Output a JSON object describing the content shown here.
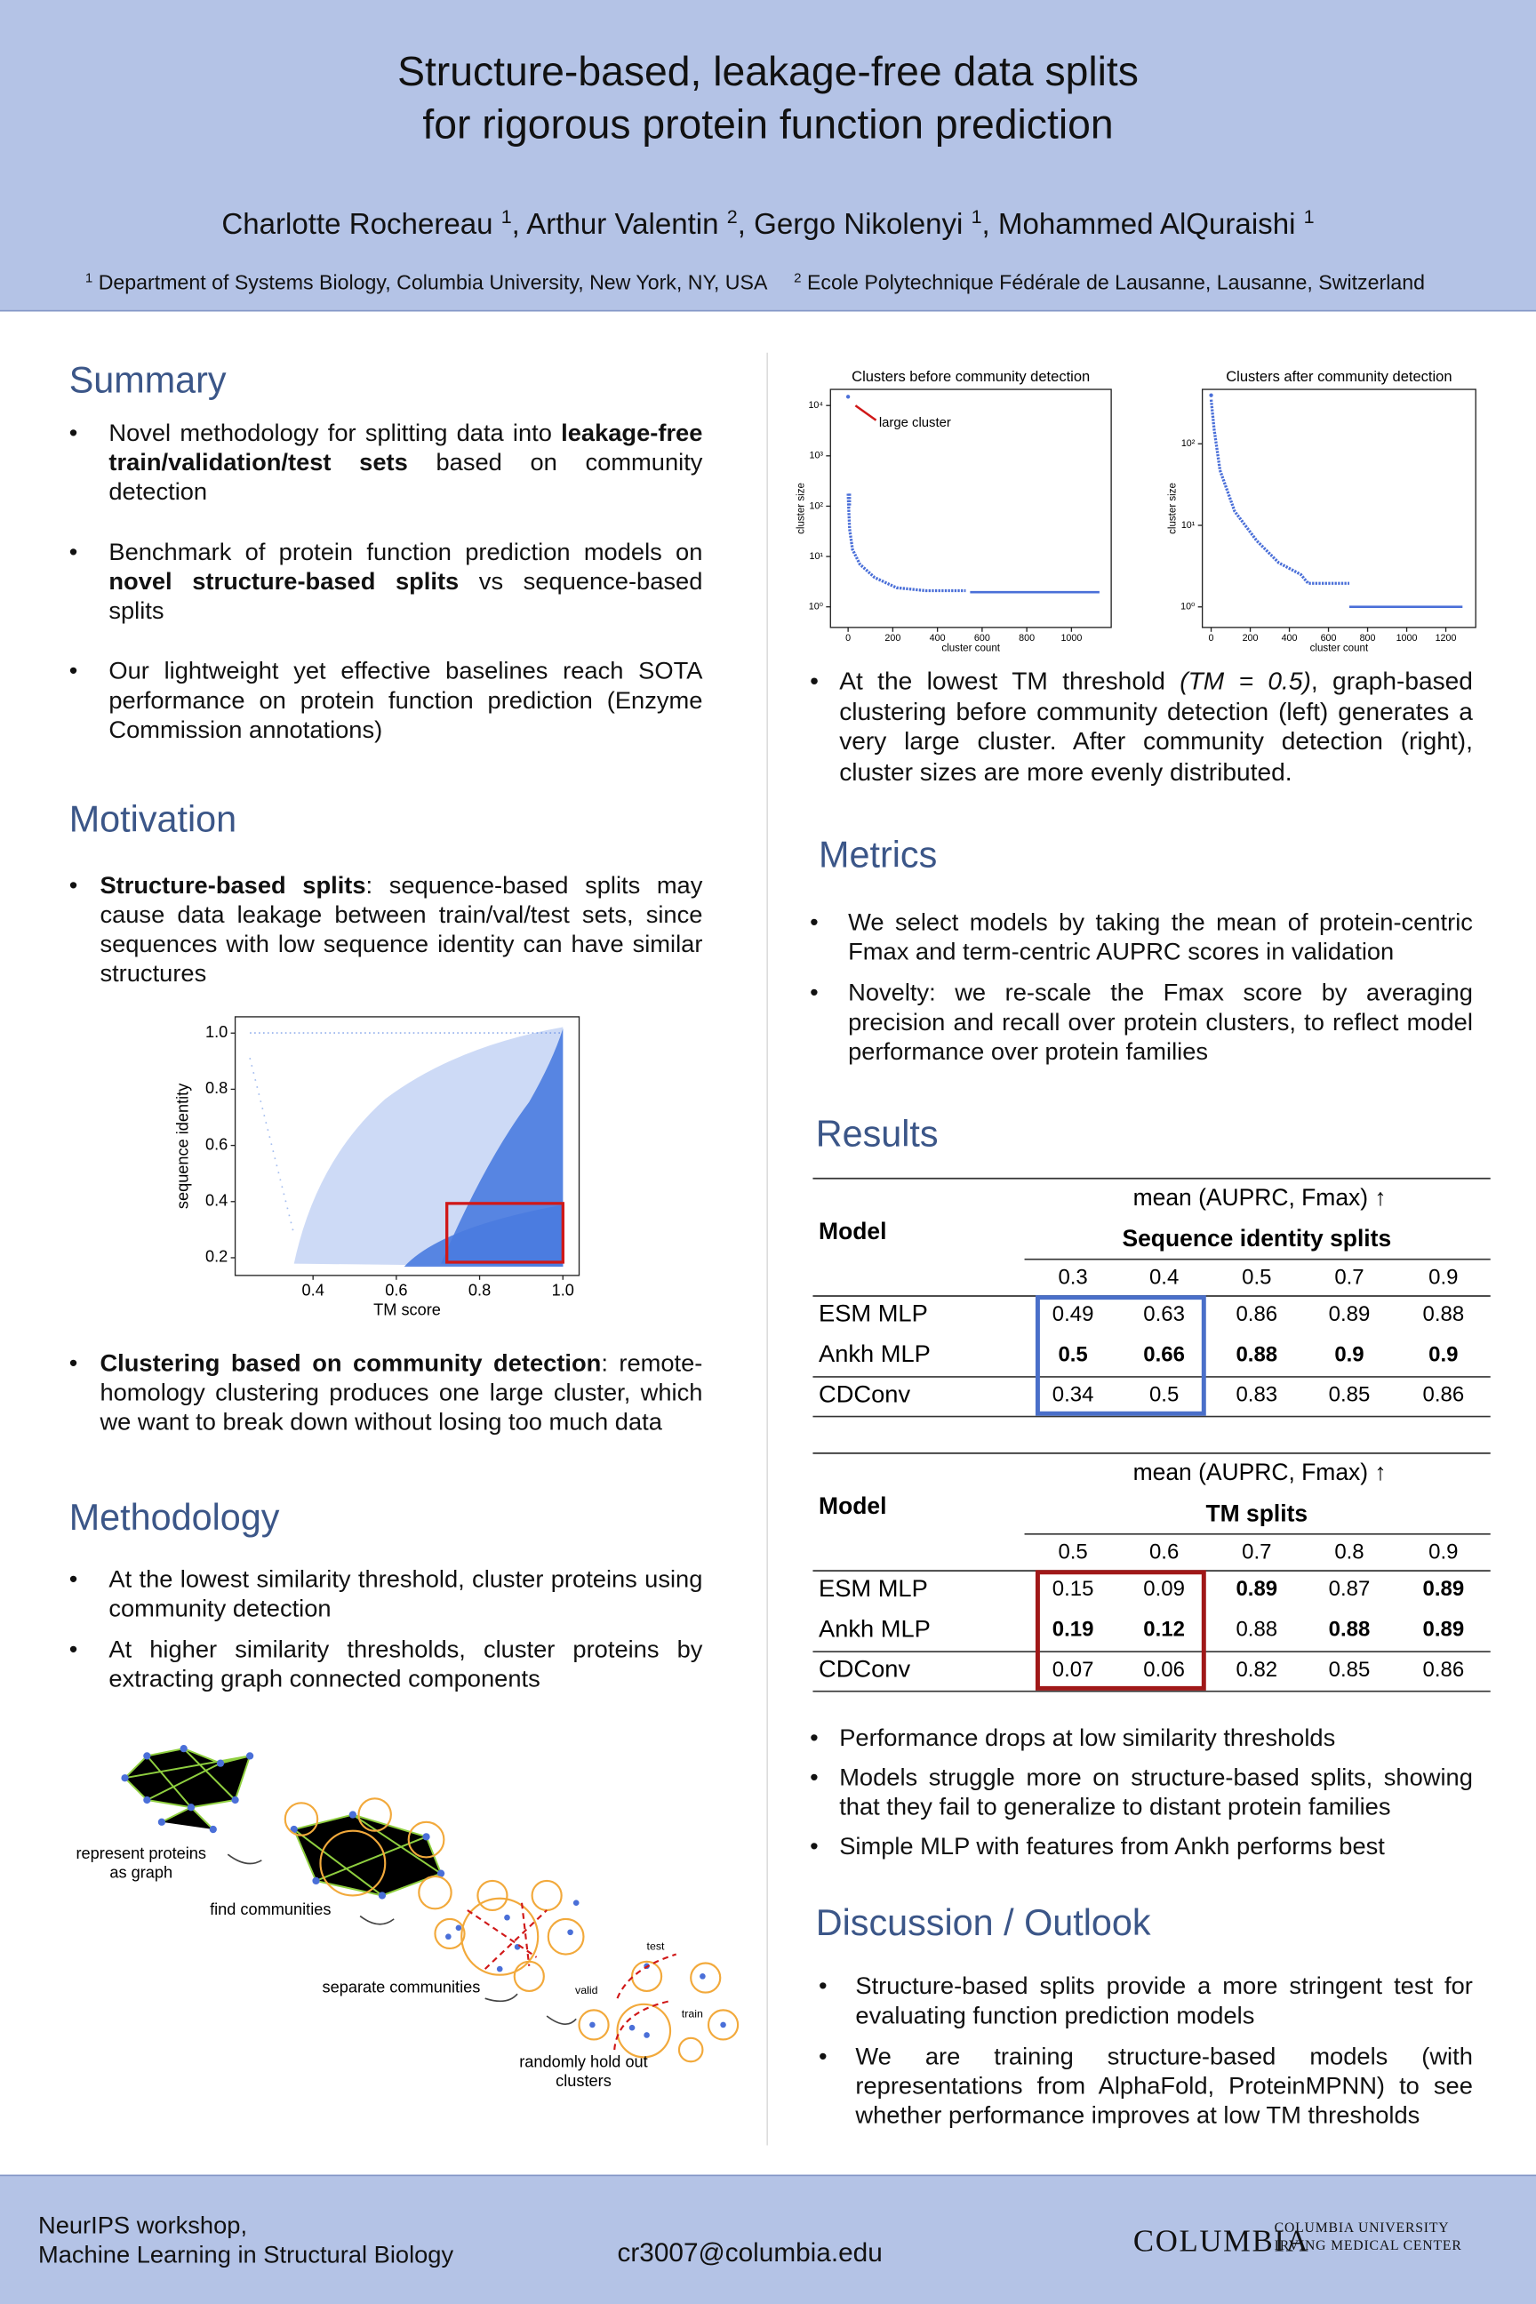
{
  "header": {
    "title": [
      "Structure-based, leakage-free data splits",
      "for rigorous protein function prediction"
    ],
    "authors": [
      {
        "text": "Charlotte Rochereau "
      },
      {
        "text": "1",
        "sup": true
      },
      {
        "text": ", Arthur Valentin "
      },
      {
        "text": "2",
        "sup": true
      },
      {
        "text": ", Gergo Nikolenyi "
      },
      {
        "text": "1",
        "sup": true
      },
      {
        "text": ", Mohammed AlQuraishi "
      },
      {
        "text": "1",
        "sup": true
      }
    ],
    "affiliations": [
      [
        {
          "text": "1",
          "sup": true
        },
        {
          "text": " Department of Systems Biology, Columbia University, New York, NY, USA"
        }
      ],
      [
        {
          "text": "2",
          "sup": true
        },
        {
          "text": " Ecole Polytechnique Fédérale de Lausanne, Lausanne, Switzerland"
        }
      ]
    ]
  },
  "summary": {
    "heading": "Summary",
    "bullets": [
      [
        {
          "text": "Novel methodology for splitting data into "
        },
        {
          "text": "leakage-free train/validation/test sets",
          "bold": true
        },
        {
          "text": " based on community detection"
        }
      ],
      [
        {
          "text": "Benchmark of protein function prediction models on "
        },
        {
          "text": "novel structure-based splits",
          "bold": true
        },
        {
          "text": " vs sequence-based splits"
        }
      ],
      [
        {
          "text": "Our lightweight yet effective baselines reach SOTA performance on protein function prediction (Enzyme Commission annotations)"
        }
      ]
    ]
  },
  "motivation": {
    "heading": "Motivation",
    "bullets": [
      [
        {
          "text": "Structure-based splits",
          "bold": true
        },
        {
          "text": ": sequence-based splits may cause data leakage between train/val/test sets, since sequences with low sequence identity can have similar structures"
        }
      ],
      [
        {
          "text": "Clustering based on community detection",
          "bold": true
        },
        {
          "text": ": remote-homology clustering produces one large cluster, which we want to break down without losing too much data"
        }
      ]
    ],
    "figure": {
      "type": "scatter",
      "xlabel": "TM score",
      "ylabel": "sequence identity",
      "xlim": [
        0.213,
        1.039
      ],
      "ylim": [
        0.137,
        1.058
      ],
      "xticks": [
        0.4,
        0.6,
        0.8,
        {
          "value": 1,
          "label": "1.0"
        }
      ],
      "yticks": [
        0.2,
        0.4,
        0.6,
        0.8,
        {
          "value": 1,
          "label": "1.0"
        }
      ],
      "color": "#4a7be0",
      "box_color": "#d01818"
    }
  },
  "methodology": {
    "heading": "Methodology",
    "bullets": [
      [
        {
          "text": "At the lowest similarity threshold, cluster proteins using community detection"
        }
      ],
      [
        {
          "text": "At higher similarity thresholds, cluster proteins by extracting graph connected components"
        }
      ]
    ],
    "diagram_labels": [
      [
        "represent proteins",
        "as graph"
      ],
      [
        "find communities"
      ],
      [
        "separate communities"
      ],
      [
        "randomly hold out",
        "clusters"
      ],
      [
        "test"
      ],
      [
        "valid"
      ],
      [
        "train"
      ]
    ]
  },
  "cluster_figures": [
    {
      "type": "scatter",
      "title": "Clusters before community detection",
      "xlabel": "cluster count",
      "ylabel": "cluster size",
      "yscale": "log",
      "xlim": [
        -79,
        1178
      ],
      "ylim": [
        0.39,
        20900
      ],
      "xticks": [
        0,
        200,
        400,
        600,
        800,
        1000
      ],
      "yticks": [
        {
          "value": 1,
          "label": "10⁰"
        },
        {
          "value": 10,
          "label": "10¹"
        },
        {
          "value": 100,
          "label": "10²"
        },
        {
          "value": 1000,
          "label": "10³"
        },
        {
          "value": 10000,
          "label": "10⁴"
        }
      ],
      "annotation": "large cluster",
      "color": "#4a6fd8"
    },
    {
      "type": "scatter",
      "title": "Clusters after community detection",
      "xlabel": "cluster count",
      "ylabel": "cluster size",
      "yscale": "log",
      "xlim": [
        -45,
        1353
      ],
      "ylim": [
        0.56,
        465
      ],
      "xticks": [
        0,
        200,
        400,
        600,
        800,
        1000,
        1200
      ],
      "yticks": [
        {
          "value": 1,
          "label": "10⁰"
        },
        {
          "value": 10,
          "label": "10¹"
        },
        {
          "value": 100,
          "label": "10²"
        }
      ],
      "color": "#4a6fd8"
    }
  ],
  "cluster_caption": [
    [
      {
        "text": "At the lowest TM threshold "
      },
      {
        "text": "(TM = 0.5)",
        "italic": true
      },
      {
        "text": ", graph-based clustering before community detection (left) generates a very large cluster. After community detection (right), cluster sizes are more evenly distributed."
      }
    ]
  ],
  "metrics": {
    "heading": "Metrics",
    "bullets": [
      [
        {
          "text": "We select models by taking the mean of protein-centric Fmax and term-centric AUPRC scores in validation"
        }
      ],
      [
        {
          "text": "Novelty: we re-scale the Fmax score by averaging precision and recall over protein clusters, to reflect model performance over protein families"
        }
      ]
    ]
  },
  "results": {
    "heading": "Results",
    "tables": [
      {
        "header": "mean (AUPRC, Fmax) ↑",
        "split": "Sequence identity splits",
        "model_label": "Model",
        "thresholds": [
          0.3,
          0.4,
          0.5,
          0.7,
          0.9
        ],
        "highlight_columns": [
          0,
          1
        ],
        "highlight_color": "#4a6fc9",
        "rows": [
          {
            "model": "ESM MLP",
            "values": [
              0.49,
              0.63,
              0.86,
              0.89,
              0.88
            ],
            "bold": [
              false,
              false,
              false,
              false,
              false
            ]
          },
          {
            "model": "Ankh MLP",
            "values": [
              0.5,
              0.66,
              0.88,
              0.9,
              0.9
            ],
            "bold": [
              true,
              true,
              true,
              true,
              true
            ]
          },
          {
            "model": "CDConv",
            "values": [
              0.34,
              0.5,
              0.83,
              0.85,
              0.86
            ],
            "bold": [
              false,
              false,
              false,
              false,
              false
            ]
          }
        ]
      },
      {
        "header": "mean (AUPRC, Fmax) ↑",
        "split": "TM splits",
        "model_label": "Model",
        "thresholds": [
          0.5,
          0.6,
          0.7,
          0.8,
          0.9
        ],
        "highlight_columns": [
          0,
          1
        ],
        "highlight_color": "#a01818",
        "rows": [
          {
            "model": "ESM MLP",
            "values": [
              0.15,
              0.09,
              0.89,
              0.87,
              0.89
            ],
            "bold": [
              false,
              false,
              true,
              false,
              true
            ]
          },
          {
            "model": "Ankh MLP",
            "values": [
              0.19,
              0.12,
              0.88,
              0.88,
              0.89
            ],
            "bold": [
              true,
              true,
              false,
              true,
              true
            ]
          },
          {
            "model": "CDConv",
            "values": [
              0.07,
              0.06,
              0.82,
              0.85,
              0.86
            ],
            "bold": [
              false,
              false,
              false,
              false,
              false
            ]
          }
        ]
      }
    ],
    "bullets": [
      [
        {
          "text": "Performance drops at low similarity thresholds"
        }
      ],
      [
        {
          "text": "Models struggle more on structure-based splits, showing that they fail to generalize to distant protein families"
        }
      ],
      [
        {
          "text": "Simple MLP with features from Ankh performs best"
        }
      ]
    ]
  },
  "discussion": {
    "heading": "Discussion / Outlook",
    "bullets": [
      [
        {
          "text": "Structure-based splits provide a more stringent test for evaluating function prediction models"
        }
      ],
      [
        {
          "text": "We are training structure-based models (with representations from AlphaFold, ProteinMPNN) to see whether performance improves at low TM thresholds"
        }
      ]
    ]
  },
  "footer": {
    "venue": [
      "NeurIPS workshop,",
      "Machine Learning in Structural Biology"
    ],
    "email": "cr3007@columbia.edu",
    "logo": "COLUMBIA",
    "institution": [
      "COLUMBIA UNIVERSITY",
      "IRVING MEDICAL CENTER"
    ]
  }
}
